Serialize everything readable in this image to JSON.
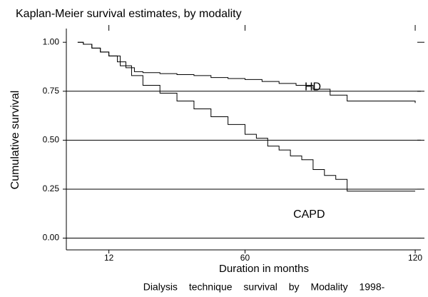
{
  "chart_data": {
    "type": "line",
    "title": "Kaplan-Meier survival estimates, by modality",
    "x_label": "Duration in months",
    "y_label": "Cumulative survival",
    "caption": "Dialysis technique survival by Modality 1998-",
    "xlim": [
      -3,
      122
    ],
    "ylim": [
      -0.06,
      1.07
    ],
    "xticks": [
      12,
      60,
      120
    ],
    "yticks": [
      {
        "value": 0,
        "label": "0.00"
      },
      {
        "value": 0.25,
        "label": "0.25"
      },
      {
        "value": 0.5,
        "label": "0.50"
      },
      {
        "value": 0.75,
        "label": "0.75"
      },
      {
        "value": 1,
        "label": "1.00"
      }
    ],
    "grid": true,
    "step": true,
    "series": [
      {
        "name": "HD",
        "color": "#000000",
        "x": [
          1,
          3,
          6,
          9,
          12,
          15,
          18,
          21,
          24,
          30,
          36,
          42,
          48,
          54,
          60,
          66,
          72,
          78,
          84,
          90,
          96,
          120
        ],
        "values": [
          1.0,
          0.99,
          0.97,
          0.95,
          0.93,
          0.9,
          0.87,
          0.85,
          0.845,
          0.84,
          0.835,
          0.83,
          0.82,
          0.815,
          0.81,
          0.8,
          0.79,
          0.78,
          0.76,
          0.73,
          0.7,
          0.69
        ]
      },
      {
        "name": "CAPD",
        "color": "#000000",
        "x": [
          1,
          3,
          6,
          9,
          12,
          16,
          20,
          24,
          30,
          36,
          42,
          48,
          54,
          60,
          64,
          68,
          72,
          76,
          80,
          84,
          88,
          92,
          96,
          120
        ],
        "values": [
          1.0,
          0.99,
          0.97,
          0.95,
          0.93,
          0.88,
          0.83,
          0.78,
          0.74,
          0.7,
          0.66,
          0.62,
          0.58,
          0.53,
          0.51,
          0.47,
          0.45,
          0.42,
          0.4,
          0.35,
          0.32,
          0.3,
          0.24,
          0.24
        ]
      }
    ],
    "annotations": [
      {
        "text": "HD",
        "x": 81,
        "y": 0.77
      },
      {
        "text": "CAPD",
        "x": 77,
        "y": 0.12
      }
    ]
  }
}
